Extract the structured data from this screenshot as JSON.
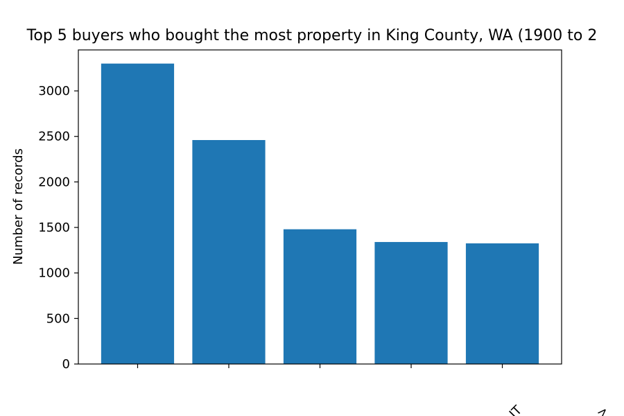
{
  "chart_data": {
    "type": "bar",
    "title": "Top 5 buyers who bought the most property in King County, WA (1900 to 2",
    "xlabel": "",
    "ylabel": "Number of records",
    "categories": [
      "",
      "",
      "",
      "",
      ""
    ],
    "values": [
      3300,
      2460,
      1480,
      1340,
      1325
    ],
    "ylim": [
      0,
      3450
    ],
    "yticks": [
      0,
      500,
      1000,
      1500,
      2000,
      2500,
      3000
    ],
    "ytick_labels": [
      "0",
      "500",
      "1000",
      "1500",
      "2000",
      "2500",
      "3000"
    ],
    "grid": false,
    "bar_color": "#1f77b4"
  }
}
